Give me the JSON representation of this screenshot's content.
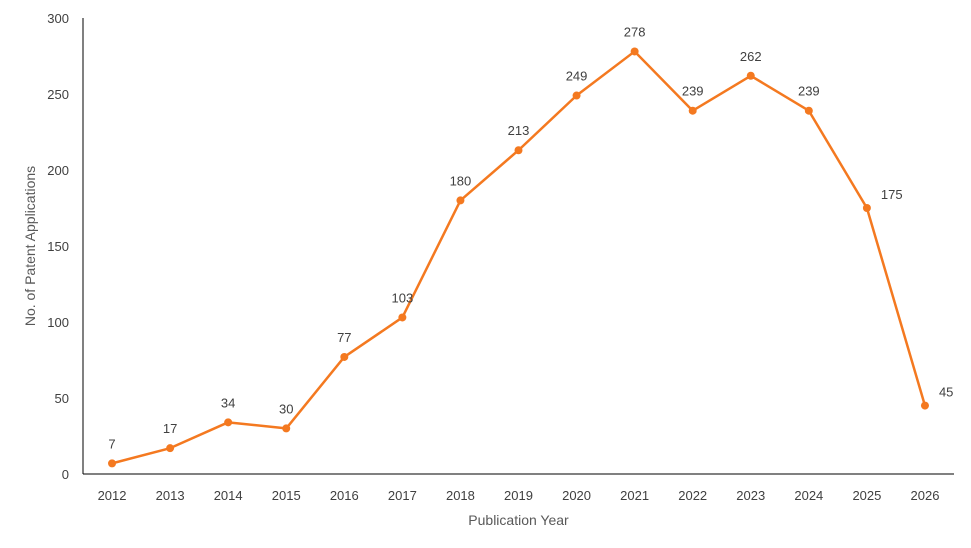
{
  "chart_data": {
    "type": "line",
    "title": "",
    "xlabel": "Publication Year",
    "ylabel": "No. of Patent Applications",
    "categories": [
      "2012",
      "2013",
      "2014",
      "2015",
      "2016",
      "2017",
      "2018",
      "2019",
      "2020",
      "2021",
      "2022",
      "2023",
      "2024",
      "2025",
      "2026"
    ],
    "series": [
      {
        "values": [
          7,
          17,
          34,
          30,
          77,
          103,
          180,
          213,
          249,
          278,
          239,
          262,
          239,
          175,
          45
        ]
      }
    ],
    "ylim": [
      0,
      300
    ],
    "yticks": [
      0,
      50,
      100,
      150,
      200,
      250,
      300
    ],
    "grid": false,
    "legend": "none",
    "line_color": "#F47920",
    "axis_color": "#000000",
    "data_labels": true
  }
}
